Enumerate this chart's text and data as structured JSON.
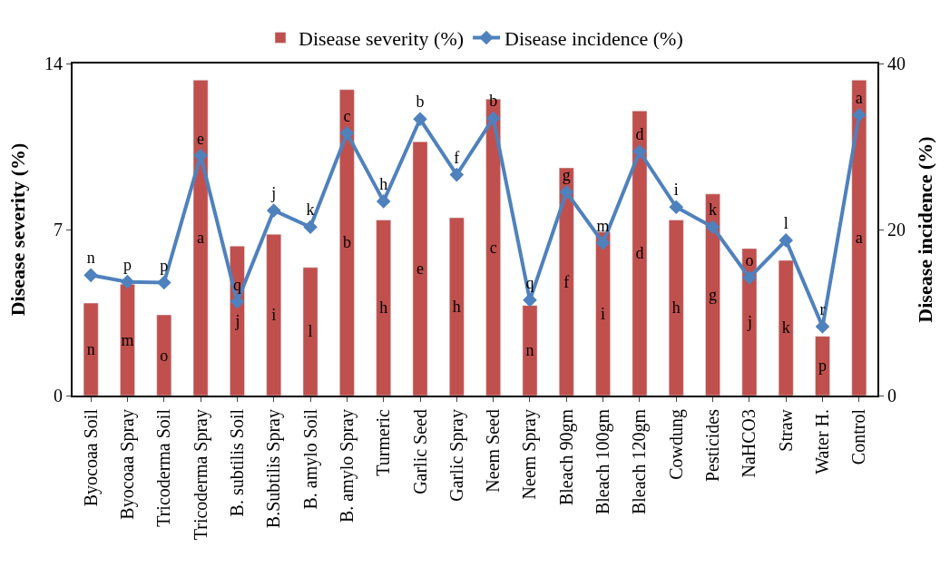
{
  "chart_data": {
    "type": "bar",
    "categories": [
      "Byocoaa Soil",
      "Byocoaa Spray",
      "Tricoderma Soil",
      "Tricoderma Spray",
      "B. subtilis Soil",
      "B.Subtilis Spray",
      "B. amylo Soil",
      "B. amylo Spray",
      "Turmeric",
      "Garlic Seed",
      "Garlic Spray",
      "Neem Seed",
      "Neem Spray",
      "Bleach 90gm",
      "Bleach 100gm",
      "Bleach 120gm",
      "Cowdung",
      "Pesticides",
      "NaHCO3",
      "Straw",
      "Water H.",
      "Control"
    ],
    "ylabel": "Disease severity (%)",
    "y2label": "Disease incidence (%)",
    "ylim": [
      0,
      14
    ],
    "yticks": [
      0,
      7,
      14
    ],
    "y2lim": [
      0,
      40
    ],
    "y2ticks": [
      0,
      20,
      40
    ],
    "legend": "top",
    "series": [
      {
        "name": "Disease severity (%)",
        "color": "#c0504d",
        "values": [
          3.9,
          4.7,
          3.4,
          13.3,
          6.3,
          6.8,
          5.4,
          12.9,
          7.4,
          10.7,
          7.5,
          12.5,
          3.8,
          9.6,
          6.9,
          12.0,
          7.4,
          8.5,
          6.2,
          5.7,
          2.5,
          13.3
        ],
        "value_labels": [
          "n",
          "m",
          "o",
          "a",
          "j",
          "i",
          "l",
          "b",
          "h",
          "e",
          "h",
          "c",
          "n",
          "f",
          "i",
          "d",
          "h",
          "g",
          "j",
          "k",
          "p",
          "a"
        ]
      },
      {
        "name": "Disease incidence (%)",
        "type": "line",
        "axis": "y2",
        "color": "#4f81bd",
        "marker": "diamond",
        "values": [
          14.5,
          13.7,
          13.6,
          28.9,
          11.3,
          22.3,
          20.3,
          31.6,
          23.4,
          33.3,
          26.6,
          33.4,
          11.5,
          24.5,
          18.4,
          29.4,
          22.7,
          20.3,
          14.2,
          18.7,
          8.3,
          33.8
        ],
        "value_labels": [
          "n",
          "p",
          "p",
          "e",
          "q",
          "j",
          "k",
          "c",
          "h",
          "b",
          "f",
          "b",
          "q",
          "g",
          "m",
          "d",
          "i",
          "k",
          "o",
          "l",
          "r",
          "a"
        ]
      }
    ]
  }
}
